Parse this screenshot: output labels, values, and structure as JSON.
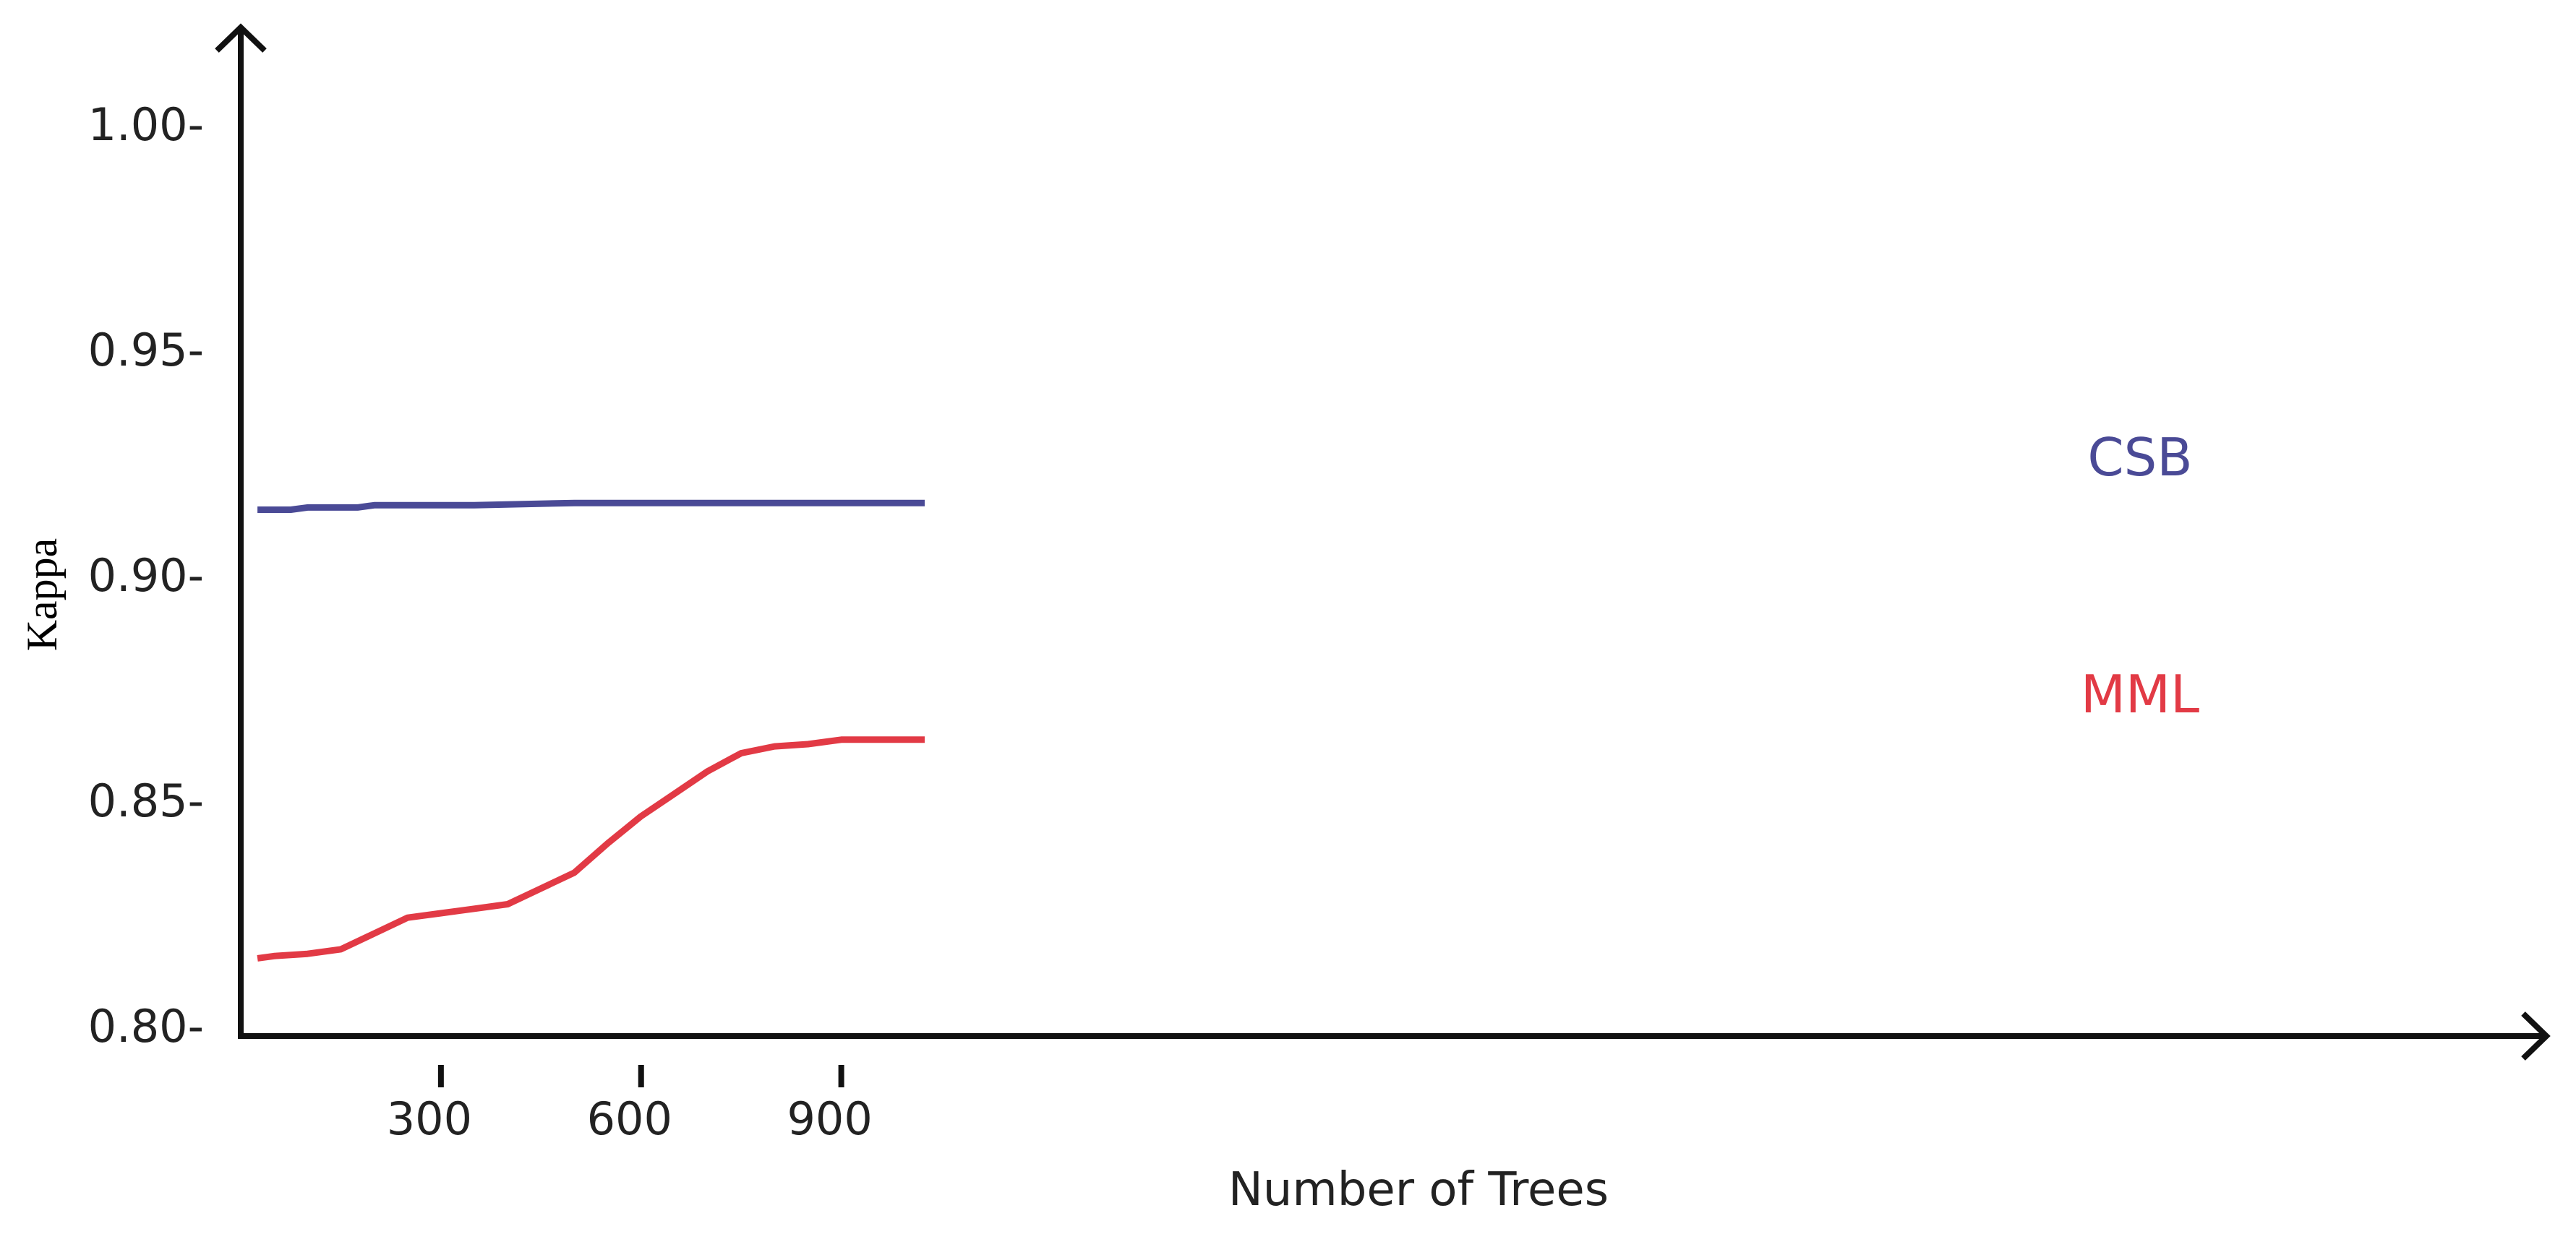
{
  "chart_data": {
    "type": "line",
    "title": "",
    "xlabel": "Number of Trees",
    "ylabel": "Kappa",
    "xlim": [
      0,
      1100
    ],
    "ylim": [
      0.8,
      1.0
    ],
    "xticks": [
      "300",
      "600",
      "900"
    ],
    "xtick_values": [
      300,
      600,
      900
    ],
    "yticks": [
      "1.00-",
      "0.95-",
      "0.90-",
      "0.85-",
      "0.80-"
    ],
    "ytick_values": [
      1.0,
      0.95,
      0.9,
      0.85,
      0.8
    ],
    "grid": false,
    "series": [
      {
        "name": "CSB",
        "color": "#4a4a96",
        "x": [
          25,
          75,
          100,
          175,
          200,
          300,
          350,
          500,
          1025
        ],
        "y": [
          0.9145,
          0.9145,
          0.915,
          0.915,
          0.9155,
          0.9155,
          0.9155,
          0.916,
          0.916
        ]
      },
      {
        "name": "MML",
        "color": "#e23a45",
        "x": [
          25,
          50,
          100,
          150,
          200,
          250,
          300,
          350,
          400,
          450,
          500,
          550,
          600,
          650,
          700,
          750,
          800,
          850,
          900,
          1025
        ],
        "y": [
          0.815,
          0.8155,
          0.816,
          0.817,
          0.8205,
          0.824,
          0.825,
          0.826,
          0.827,
          0.8305,
          0.834,
          0.8405,
          0.8465,
          0.8515,
          0.8565,
          0.8605,
          0.862,
          0.8625,
          0.8635,
          0.8635
        ]
      }
    ]
  }
}
